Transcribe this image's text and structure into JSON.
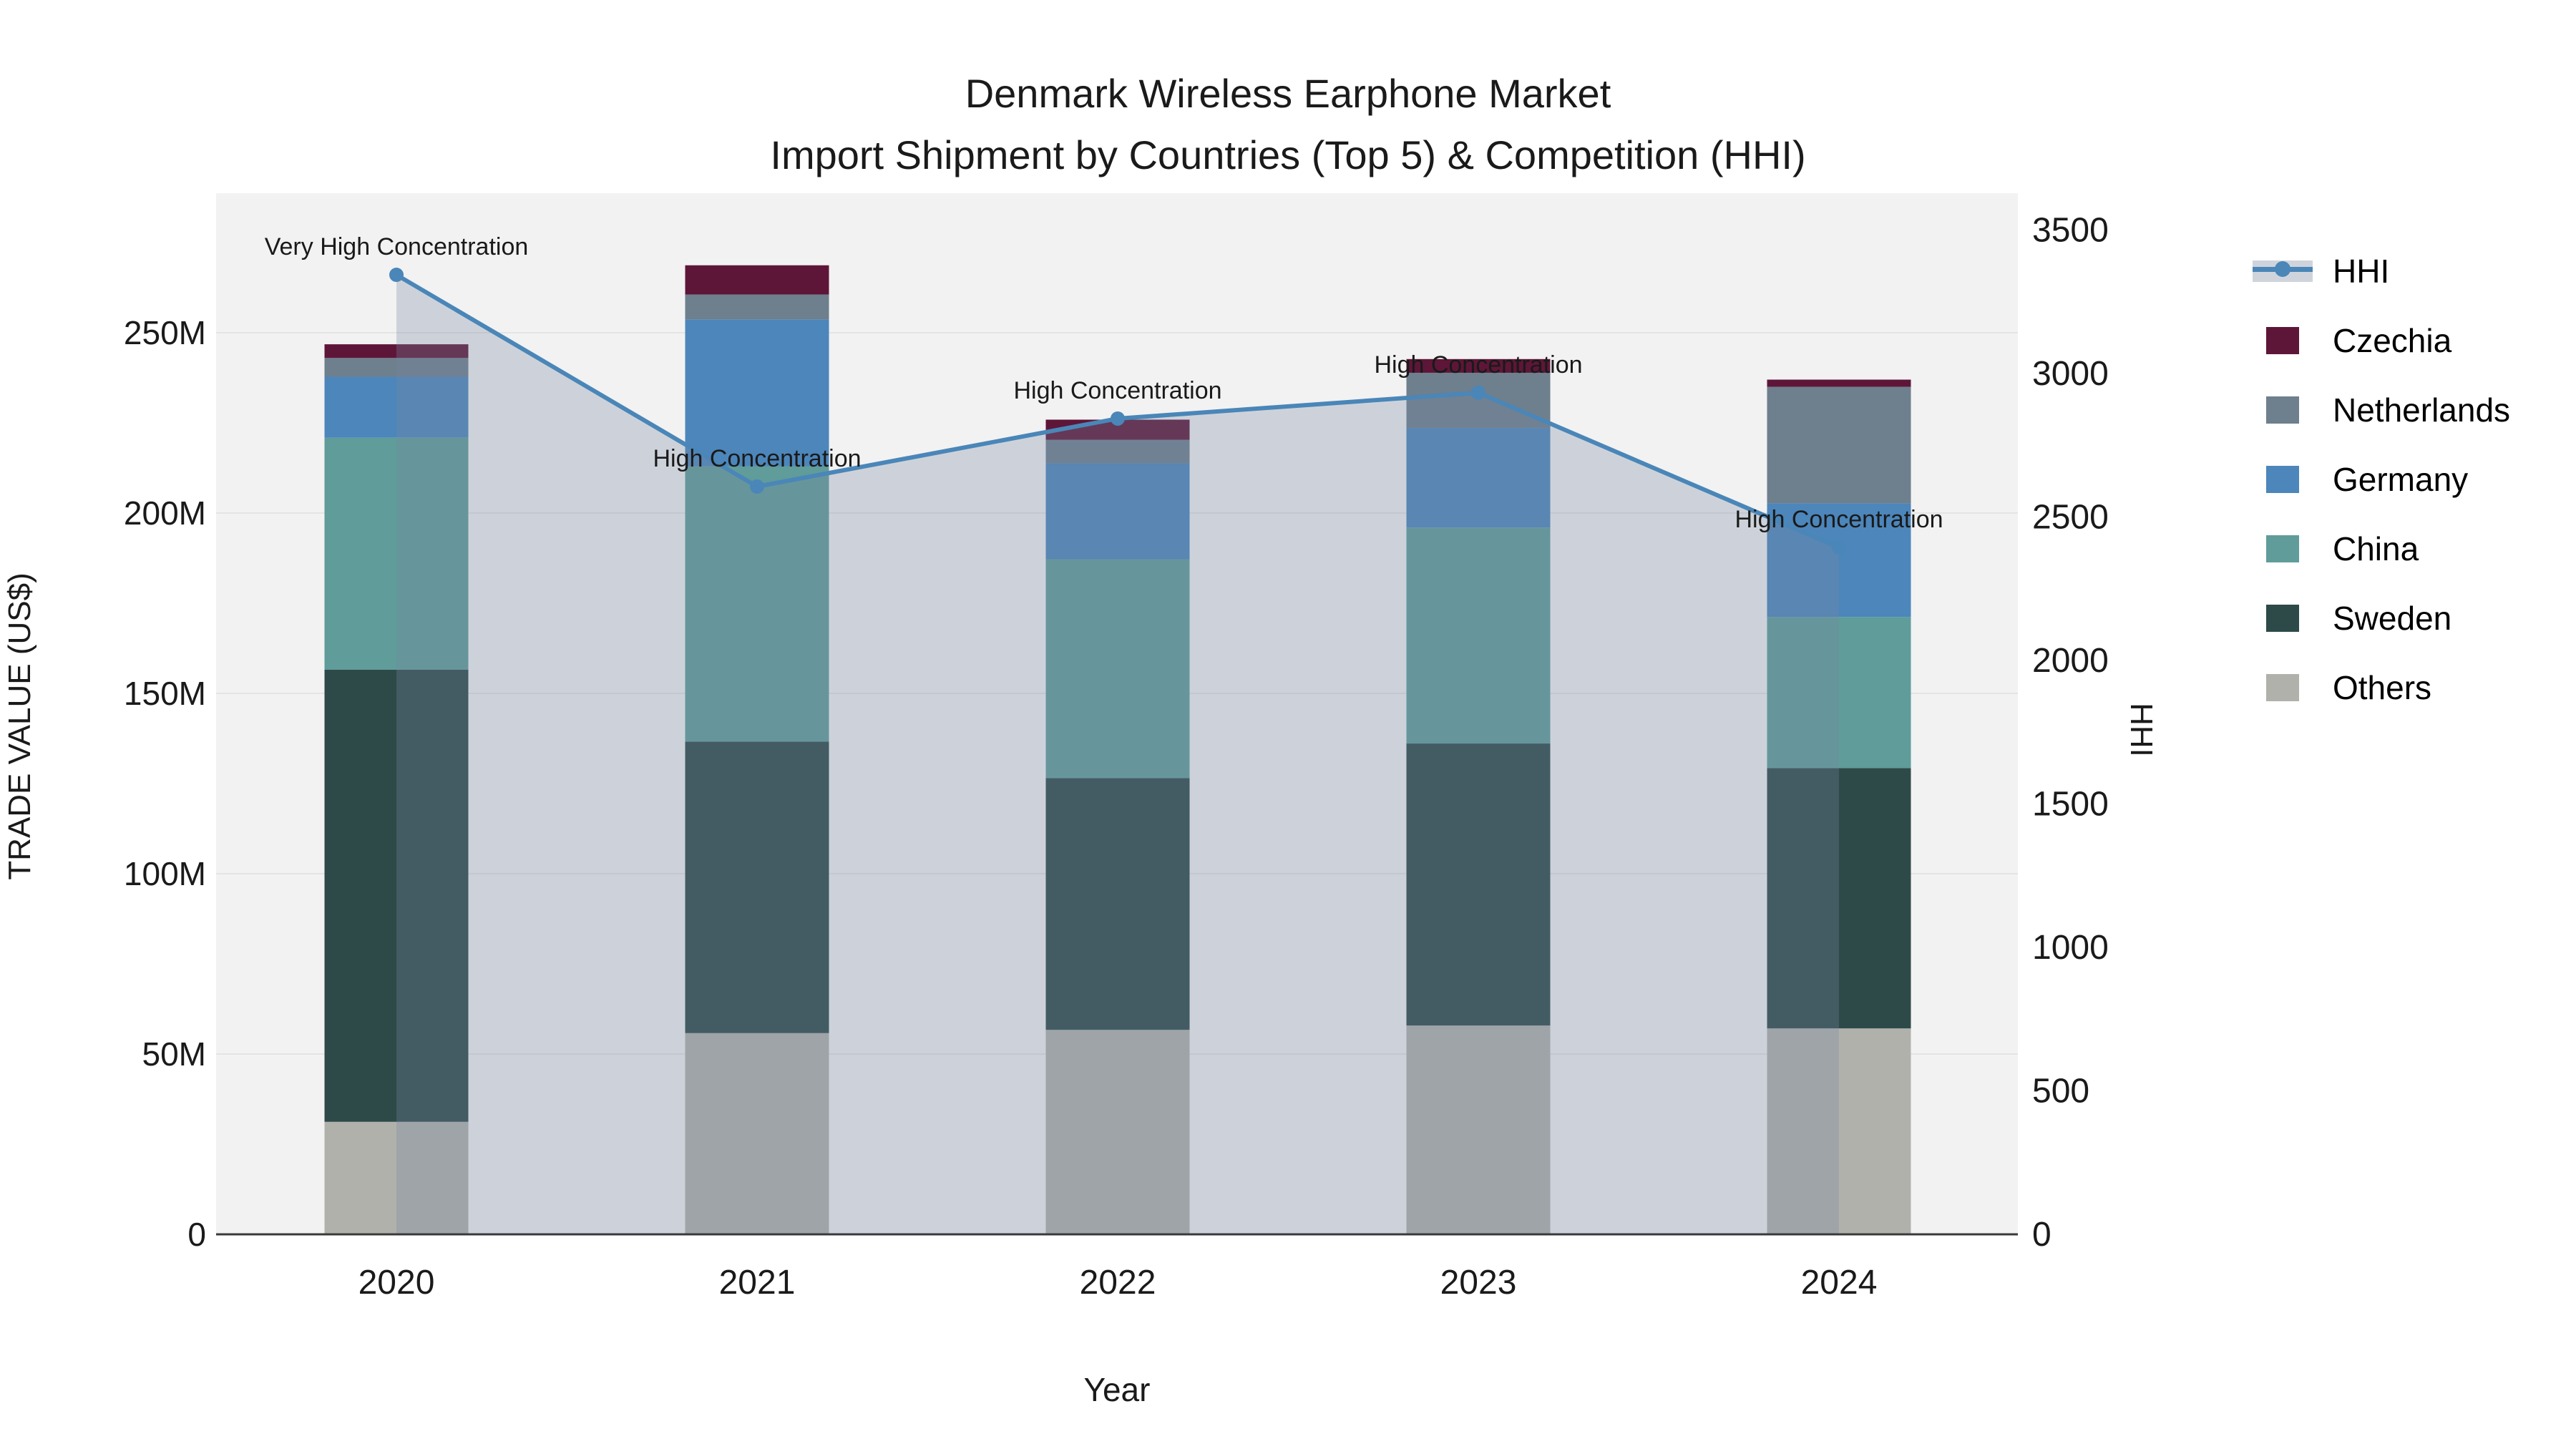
{
  "title": {
    "line1": "Denmark Wireless Earphone Market",
    "line2": "Import Shipment by Countries (Top 5) & Competition (HHI)"
  },
  "axes": {
    "x": {
      "title": "Year"
    },
    "y_left": {
      "title": "TRADE VALUE (US$)",
      "tick_labels": [
        "0",
        "50M",
        "100M",
        "150M",
        "200M",
        "250M"
      ],
      "tick_step_m": 50
    },
    "y_right": {
      "title": "HHI",
      "tick_labels": [
        "0",
        "500",
        "1000",
        "1500",
        "2000",
        "2500",
        "3000",
        "3500"
      ],
      "tick_step": 500
    }
  },
  "chart_data": {
    "type": "bar+line",
    "categories": [
      "2020",
      "2021",
      "2022",
      "2023",
      "2024"
    ],
    "bar_unit": "million US$",
    "series": [
      {
        "name": "Others",
        "color": "#b1b1ac",
        "values": [
          31.2,
          55.8,
          56.7,
          57.9,
          57.1
        ]
      },
      {
        "name": "Sweden",
        "color": "#2d4a49",
        "values": [
          125.4,
          80.8,
          69.8,
          78.2,
          72.2
        ]
      },
      {
        "name": "China",
        "color": "#5f9c9a",
        "values": [
          64.3,
          76.4,
          60.7,
          59.9,
          41.9
        ]
      },
      {
        "name": "Germany",
        "color": "#4c86bb",
        "values": [
          16.9,
          40.7,
          26.6,
          27.6,
          31.5
        ]
      },
      {
        "name": "Netherlands",
        "color": "#6e7f8d",
        "values": [
          5.2,
          6.9,
          6.5,
          15.3,
          32.3
        ]
      },
      {
        "name": "Czechia",
        "color": "#5e1638",
        "values": [
          3.8,
          8.1,
          5.6,
          3.8,
          2.0
        ]
      }
    ],
    "bar_totals_m": [
      246.8,
      268.7,
      225.9,
      242.7,
      237.0
    ],
    "line": {
      "name": "HHI",
      "color": "#4a86b8",
      "fill": "rgba(118,135,163,0.30)",
      "values": [
        3344,
        2606,
        2843,
        2933,
        2394
      ]
    },
    "annotations": [
      {
        "x": 0,
        "text": "Very High Concentration"
      },
      {
        "x": 1,
        "text": "High Concentration"
      },
      {
        "x": 2,
        "text": "High Concentration"
      },
      {
        "x": 3,
        "text": "High Concentration"
      },
      {
        "x": 4,
        "text": "High Concentration"
      }
    ],
    "ylim_left_m": [
      0,
      287.5
    ],
    "ylim_right": [
      0,
      3623
    ],
    "grid": true,
    "legend_position": "right"
  },
  "legend": {
    "items": [
      {
        "label": "HHI",
        "type": "line",
        "color": "#4a86b8",
        "band": "#cfd4dc"
      },
      {
        "label": "Czechia",
        "type": "box",
        "color": "#5e1638"
      },
      {
        "label": "Netherlands",
        "type": "box",
        "color": "#6e7f8d"
      },
      {
        "label": "Germany",
        "type": "box",
        "color": "#4c86bb"
      },
      {
        "label": "China",
        "type": "box",
        "color": "#5f9c9a"
      },
      {
        "label": "Sweden",
        "type": "box",
        "color": "#2d4a49"
      },
      {
        "label": "Others",
        "type": "box",
        "color": "#b1b1ac"
      }
    ]
  },
  "style": {
    "plot_bg": "#f2f2f2",
    "grid_color": "#e4e4e4",
    "axis_line_color": "#3a3a3a",
    "text_color": "#1a1a1a"
  }
}
